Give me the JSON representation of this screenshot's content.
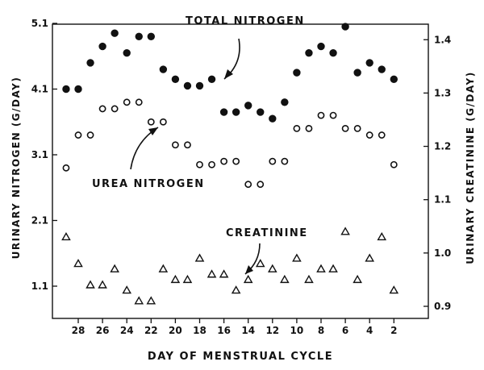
{
  "chart_data": {
    "type": "scatter",
    "xlabel": "DAY OF MENSTRUAL CYCLE",
    "ylabel_left": "URINARY NITROGEN (G/DAY)",
    "ylabel_right": "URINARY CREATININE (G/DAY)",
    "x_reversed": true,
    "x_ticks": [
      28,
      26,
      24,
      22,
      20,
      18,
      16,
      14,
      12,
      10,
      8,
      6,
      4,
      2
    ],
    "y_left_ticks": [
      "1.1",
      "2.1",
      "3.1",
      "4.1",
      "5.1"
    ],
    "y_right_ticks": [
      "0.9",
      "1.0",
      "1.1",
      "1.2",
      "1.3",
      "1.4"
    ],
    "ylim_left": [
      0.4,
      5.5
    ],
    "ylim_right": [
      0.88,
      1.42
    ],
    "annotations": {
      "total": "TOTAL NITROGEN",
      "urea": "UREA NITROGEN",
      "creatinine": "CREATININE"
    },
    "x": [
      29,
      28,
      27,
      26,
      25,
      24,
      23,
      22,
      21,
      20,
      19,
      18,
      17,
      16,
      15,
      14,
      13,
      12,
      11,
      10,
      9,
      8,
      7,
      6,
      5,
      4,
      3,
      2,
      1
    ],
    "series": [
      {
        "name": "TOTAL NITROGEN",
        "axis": "left",
        "marker": "filled-circle",
        "values": [
          4.1,
          4.1,
          4.5,
          4.75,
          4.95,
          4.65,
          4.9,
          4.9,
          4.4,
          4.25,
          4.15,
          4.15,
          4.25,
          3.75,
          3.75,
          3.85,
          3.75,
          3.65,
          3.9,
          4.35,
          4.65,
          4.75,
          4.65,
          5.05,
          4.35,
          4.5,
          4.4,
          4.25,
          null
        ]
      },
      {
        "name": "UREA NITROGEN",
        "axis": "left",
        "marker": "open-circle",
        "values": [
          2.9,
          3.4,
          3.4,
          3.8,
          3.8,
          3.9,
          3.9,
          3.6,
          3.6,
          3.25,
          3.25,
          2.95,
          2.95,
          3.0,
          3.0,
          2.65,
          2.65,
          3.0,
          3.0,
          3.5,
          3.5,
          3.7,
          3.7,
          3.5,
          3.5,
          3.4,
          3.4,
          2.95,
          null
        ]
      },
      {
        "name": "CREATININE",
        "axis": "right",
        "marker": "open-triangle",
        "values": [
          1.03,
          0.98,
          0.94,
          0.94,
          0.97,
          0.93,
          0.91,
          0.91,
          0.97,
          0.95,
          0.95,
          0.99,
          0.96,
          0.96,
          0.93,
          0.95,
          0.98,
          0.97,
          0.95,
          0.99,
          0.95,
          0.97,
          0.97,
          1.04,
          0.95,
          0.99,
          1.03,
          0.93,
          null
        ]
      }
    ]
  }
}
